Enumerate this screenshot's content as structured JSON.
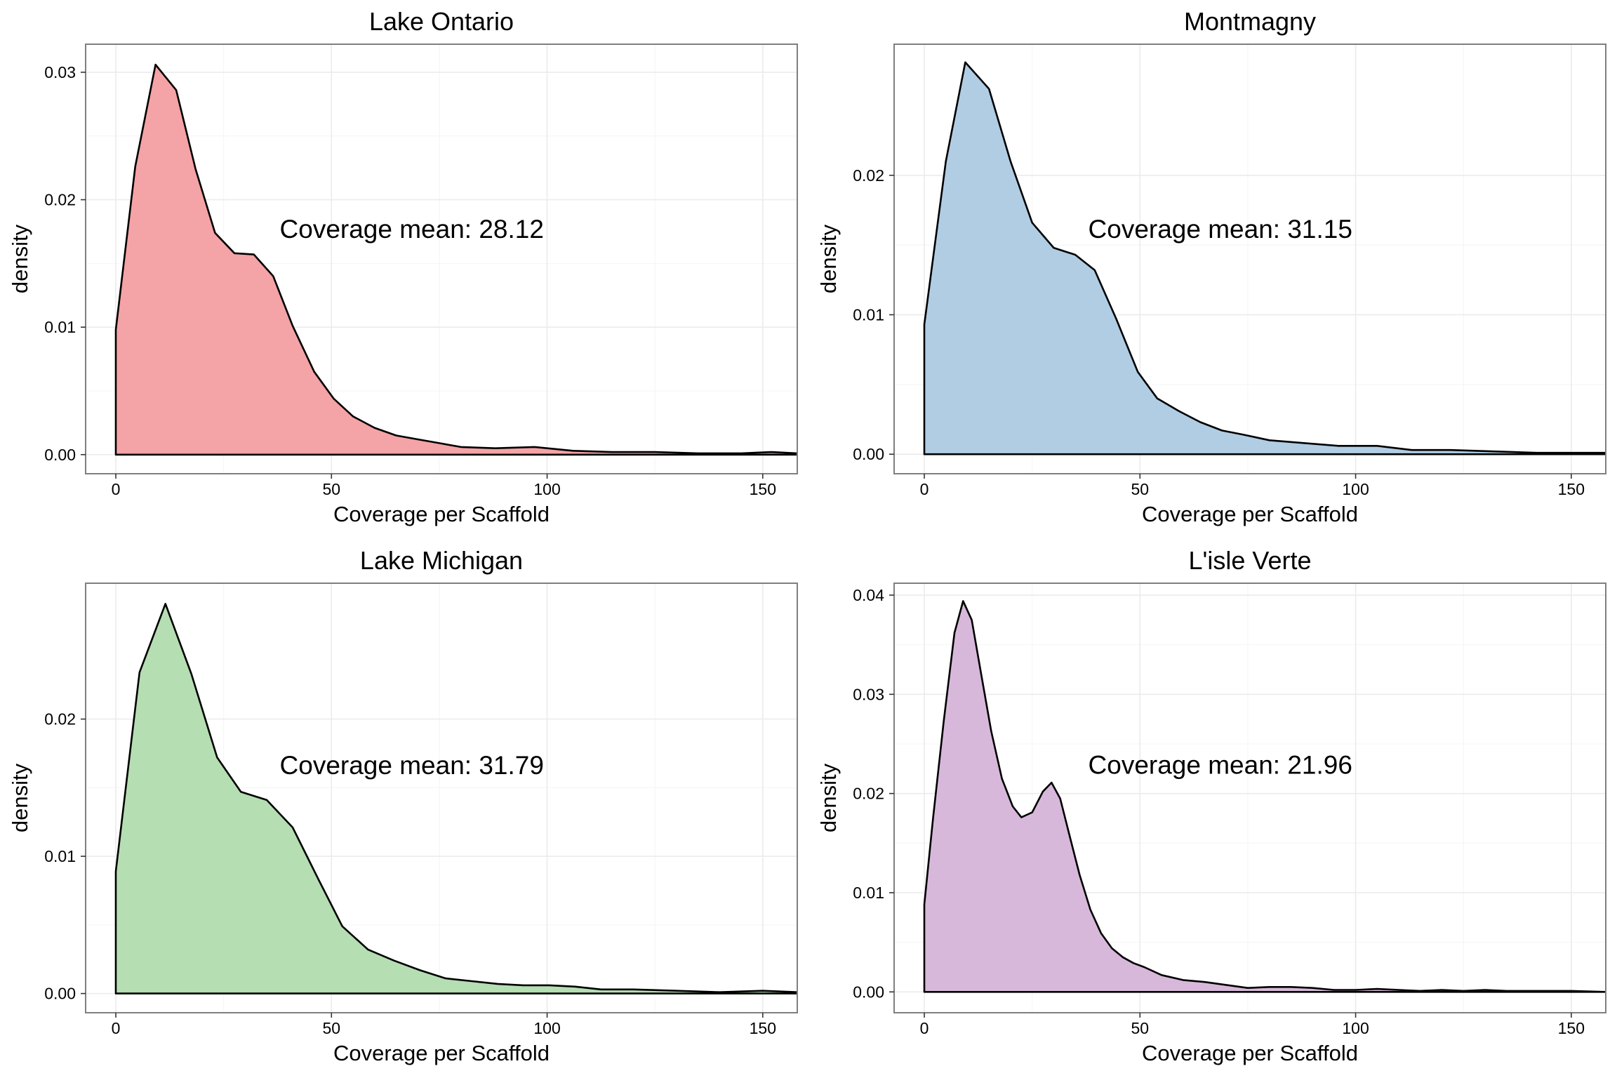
{
  "chart_data": [
    {
      "type": "area",
      "title": "Lake Ontario",
      "xlabel": "Coverage per Scaffold",
      "ylabel": "density",
      "xlim": [
        -7,
        158
      ],
      "ylim": [
        -0.0015,
        0.0322
      ],
      "xticks": [
        0,
        50,
        100,
        150
      ],
      "xtick_labels": [
        "0",
        "50",
        "100",
        "150"
      ],
      "yticks": [
        0.0,
        0.01,
        0.02,
        0.03
      ],
      "ytick_labels": [
        "0.00",
        "0.01",
        "0.02",
        "0.03"
      ],
      "grid": true,
      "fill_color": "#f4a3a6",
      "annotation": "Coverage mean:  28.12",
      "annotation_pos": [
        38,
        0.017
      ],
      "series": [
        {
          "x": [
            0,
            4.5,
            9.2,
            14,
            18.5,
            23,
            27.5,
            32,
            36.5,
            41,
            46,
            50.5,
            55,
            60,
            65,
            70,
            75,
            80,
            88,
            97,
            106,
            115,
            125,
            135,
            145,
            152,
            158
          ],
          "y": [
            0.0098,
            0.0226,
            0.0306,
            0.0286,
            0.0224,
            0.0174,
            0.0158,
            0.0157,
            0.014,
            0.0101,
            0.0065,
            0.0044,
            0.003,
            0.0021,
            0.0015,
            0.0012,
            0.0009,
            0.0006,
            0.0005,
            0.0006,
            0.0003,
            0.0002,
            0.0002,
            0.0001,
            0.0001,
            0.0002,
            0.0001
          ]
        }
      ]
    },
    {
      "type": "area",
      "title": "Montmagny",
      "xlabel": "Coverage per Scaffold",
      "ylabel": "density",
      "xlim": [
        -7,
        158
      ],
      "ylim": [
        -0.0014,
        0.0294
      ],
      "xticks": [
        0,
        50,
        100,
        150
      ],
      "xtick_labels": [
        "0",
        "50",
        "100",
        "150"
      ],
      "yticks": [
        0.0,
        0.01,
        0.02
      ],
      "ytick_labels": [
        "0.00",
        "0.01",
        "0.02"
      ],
      "grid": true,
      "fill_color": "#b0cde4",
      "annotation": "Coverage mean:  31.15",
      "annotation_pos": [
        38,
        0.0155
      ],
      "series": [
        {
          "x": [
            0,
            5,
            9.5,
            15,
            20,
            25,
            30,
            35,
            39.5,
            44.5,
            49.5,
            54,
            59,
            64,
            69,
            74,
            80,
            88,
            96,
            105,
            113,
            122,
            132,
            142,
            152,
            158
          ],
          "y": [
            0.0093,
            0.021,
            0.0281,
            0.0262,
            0.021,
            0.0166,
            0.0148,
            0.0143,
            0.0132,
            0.0097,
            0.0059,
            0.004,
            0.0031,
            0.0023,
            0.0017,
            0.0014,
            0.001,
            0.0008,
            0.0006,
            0.0006,
            0.0003,
            0.0003,
            0.0002,
            0.0001,
            0.0001,
            0.0001
          ]
        }
      ]
    },
    {
      "type": "area",
      "title": "Lake Michigan",
      "xlabel": "Coverage per Scaffold",
      "ylabel": "density",
      "xlim": [
        -7,
        158
      ],
      "ylim": [
        -0.0014,
        0.0299
      ],
      "xticks": [
        0,
        50,
        100,
        150
      ],
      "xtick_labels": [
        "0",
        "50",
        "100",
        "150"
      ],
      "yticks": [
        0.0,
        0.01,
        0.02
      ],
      "ytick_labels": [
        "0.00",
        "0.01",
        "0.02"
      ],
      "grid": true,
      "fill_color": "#b5deb3",
      "annotation": "Coverage mean:  31.79",
      "annotation_pos": [
        38,
        0.016
      ],
      "series": [
        {
          "x": [
            0,
            5.5,
            11.5,
            17.5,
            23.5,
            29,
            35,
            41,
            47,
            52.5,
            58.5,
            64.5,
            70.5,
            76.5,
            82.5,
            88.5,
            94.5,
            100.5,
            106.5,
            112.5,
            120,
            130,
            140,
            150,
            158
          ],
          "y": [
            0.0089,
            0.0234,
            0.0284,
            0.0233,
            0.0172,
            0.0147,
            0.0141,
            0.0121,
            0.0083,
            0.0049,
            0.0032,
            0.0024,
            0.0017,
            0.0011,
            0.0009,
            0.0007,
            0.0006,
            0.0006,
            0.0005,
            0.0003,
            0.0003,
            0.0002,
            0.0001,
            0.0002,
            0.0001
          ]
        }
      ]
    },
    {
      "type": "area",
      "title": "L'isle Verte",
      "xlabel": "Coverage per Scaffold",
      "ylabel": "density",
      "xlim": [
        -7,
        158
      ],
      "ylim": [
        -0.0021,
        0.0412
      ],
      "xticks": [
        0,
        50,
        100,
        150
      ],
      "xtick_labels": [
        "0",
        "50",
        "100",
        "150"
      ],
      "yticks": [
        0.0,
        0.01,
        0.02,
        0.03,
        0.04
      ],
      "ytick_labels": [
        "0.00",
        "0.01",
        "0.02",
        "0.03",
        "0.04"
      ],
      "grid": true,
      "fill_color": "#d7b8da",
      "annotation": "Coverage mean:  21.96",
      "annotation_pos": [
        38,
        0.022
      ],
      "series": [
        {
          "x": [
            0,
            2,
            4.5,
            7,
            9,
            11,
            13,
            15.5,
            18,
            20.5,
            22.5,
            25,
            27.5,
            29.5,
            31.5,
            34,
            36,
            38.5,
            41,
            43.5,
            46,
            48.5,
            51,
            55,
            60,
            65,
            70,
            75,
            80,
            85,
            90,
            95,
            100,
            105,
            110,
            115,
            120,
            125,
            130,
            135,
            140,
            150,
            158
          ],
          "y": [
            0.0088,
            0.0174,
            0.0273,
            0.0362,
            0.0394,
            0.0375,
            0.0325,
            0.0263,
            0.0215,
            0.0187,
            0.0176,
            0.0181,
            0.0202,
            0.0211,
            0.0195,
            0.0152,
            0.0118,
            0.0083,
            0.0059,
            0.0044,
            0.0035,
            0.0029,
            0.0025,
            0.0017,
            0.0012,
            0.001,
            0.0007,
            0.0004,
            0.0005,
            0.0005,
            0.0004,
            0.0002,
            0.0002,
            0.0003,
            0.0002,
            0.0001,
            0.0002,
            0.0001,
            0.0002,
            0.0001,
            0.0001,
            0.0001,
            0.0
          ]
        }
      ]
    }
  ]
}
